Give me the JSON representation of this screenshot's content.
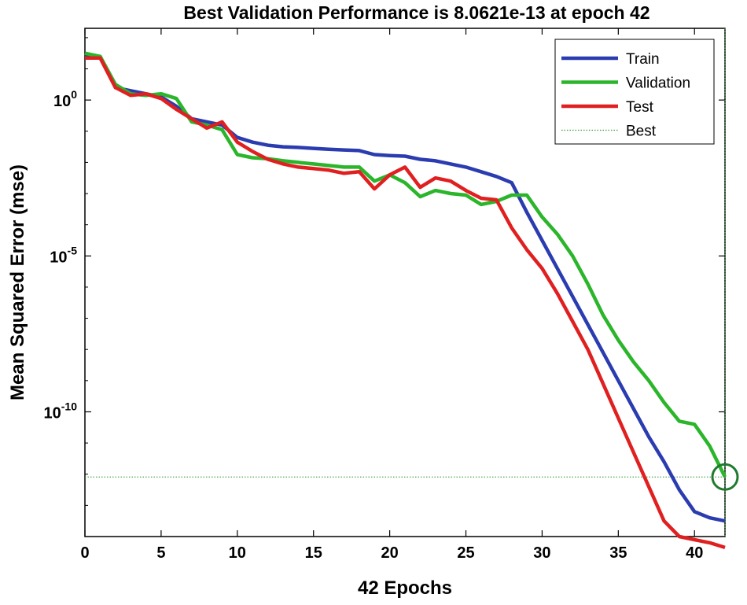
{
  "chart_data": {
    "type": "line",
    "title": "Best Validation Performance is 8.0621e-13 at epoch 42",
    "xlabel": "42 Epochs",
    "ylabel": "Mean Squared Error  (mse)",
    "yscale": "log",
    "xlim": [
      0,
      42
    ],
    "ylim_log10": [
      -14,
      2.3
    ],
    "xticks": [
      0,
      5,
      10,
      15,
      20,
      25,
      30,
      35,
      40
    ],
    "yticks": [
      {
        "exp": 0,
        "base": "10",
        "sup": "0"
      },
      {
        "exp": -5,
        "base": "10",
        "sup": "-5"
      },
      {
        "exp": -10,
        "base": "10",
        "sup": "-10"
      }
    ],
    "best": {
      "epoch": 42,
      "value": 8.0621e-13,
      "log10": -12.09
    },
    "series": [
      {
        "name": "Train",
        "color": "#2b3cb0",
        "x": [
          0,
          1,
          2,
          3,
          4,
          5,
          6,
          7,
          8,
          9,
          10,
          11,
          12,
          13,
          14,
          15,
          16,
          17,
          18,
          19,
          20,
          21,
          22,
          23,
          24,
          25,
          26,
          27,
          28,
          29,
          30,
          31,
          32,
          33,
          34,
          35,
          36,
          37,
          38,
          39,
          40,
          41,
          42
        ],
        "log10": [
          1.4,
          1.4,
          0.4,
          0.3,
          0.2,
          0.1,
          -0.2,
          -0.6,
          -0.7,
          -0.8,
          -1.2,
          -1.35,
          -1.45,
          -1.5,
          -1.52,
          -1.55,
          -1.58,
          -1.6,
          -1.62,
          -1.75,
          -1.78,
          -1.8,
          -1.9,
          -1.95,
          -2.05,
          -2.15,
          -2.3,
          -2.45,
          -2.65,
          -3.6,
          -4.5,
          -5.4,
          -6.3,
          -7.2,
          -8.1,
          -9.0,
          -9.9,
          -10.8,
          -11.6,
          -12.5,
          -13.2,
          -13.4,
          -13.5
        ]
      },
      {
        "name": "Validation",
        "color": "#2ab52a",
        "x": [
          0,
          1,
          2,
          3,
          4,
          5,
          6,
          7,
          8,
          9,
          10,
          11,
          12,
          13,
          14,
          15,
          16,
          17,
          18,
          19,
          20,
          21,
          22,
          23,
          24,
          25,
          26,
          27,
          28,
          29,
          30,
          31,
          32,
          33,
          34,
          35,
          36,
          37,
          38,
          39,
          40,
          41,
          42
        ],
        "log10": [
          1.5,
          1.4,
          0.5,
          0.2,
          0.15,
          0.2,
          0.05,
          -0.7,
          -0.8,
          -0.95,
          -1.75,
          -1.85,
          -1.88,
          -1.95,
          -2.0,
          -2.05,
          -2.1,
          -2.15,
          -2.15,
          -2.6,
          -2.4,
          -2.65,
          -3.1,
          -2.9,
          -3.0,
          -3.05,
          -3.35,
          -3.25,
          -3.05,
          -3.05,
          -3.75,
          -4.3,
          -5.0,
          -5.9,
          -6.9,
          -7.7,
          -8.4,
          -9.0,
          -9.7,
          -10.3,
          -10.4,
          -11.1,
          -12.09
        ]
      },
      {
        "name": "Test",
        "color": "#e02020",
        "x": [
          0,
          1,
          2,
          3,
          4,
          5,
          6,
          7,
          8,
          9,
          10,
          11,
          12,
          13,
          14,
          15,
          16,
          17,
          18,
          19,
          20,
          21,
          22,
          23,
          24,
          25,
          26,
          27,
          28,
          29,
          30,
          31,
          32,
          33,
          34,
          35,
          36,
          37,
          38,
          39,
          40,
          41,
          42
        ],
        "log10": [
          1.35,
          1.35,
          0.4,
          0.15,
          0.2,
          0.05,
          -0.3,
          -0.6,
          -0.9,
          -0.7,
          -1.35,
          -1.65,
          -1.9,
          -2.05,
          -2.15,
          -2.2,
          -2.25,
          -2.35,
          -2.3,
          -2.85,
          -2.4,
          -2.15,
          -2.8,
          -2.5,
          -2.6,
          -2.9,
          -3.15,
          -3.2,
          -4.1,
          -4.8,
          -5.4,
          -6.2,
          -7.1,
          -8.0,
          -9.1,
          -10.2,
          -11.3,
          -12.4,
          -13.5,
          -14.0,
          -14.1,
          -14.2,
          -14.35
        ]
      }
    ],
    "legend": {
      "placement": "top-right",
      "entries": [
        "Train",
        "Validation",
        "Test",
        "Best"
      ],
      "best_color": "#3a9a3a"
    },
    "best_marker_color": "#1f7a2e"
  }
}
